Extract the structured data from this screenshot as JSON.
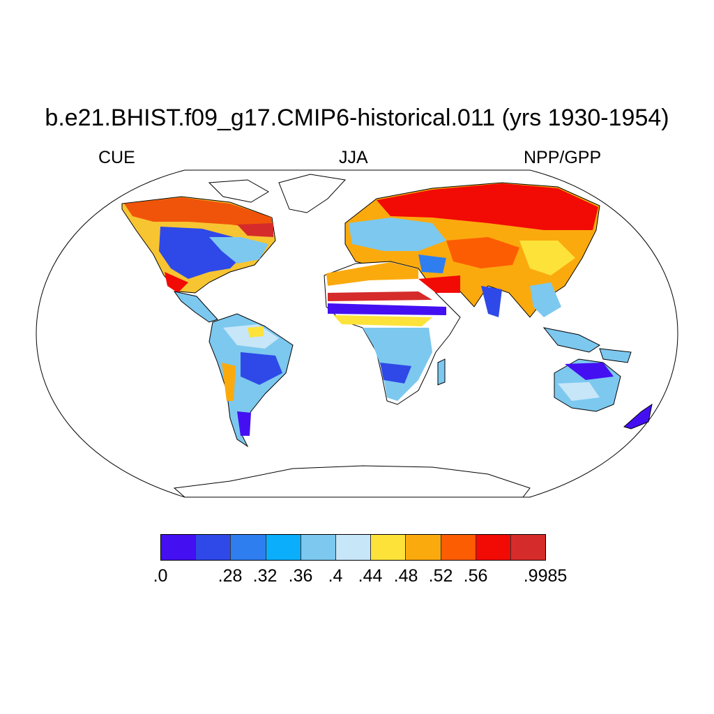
{
  "title": "b.e21.BHIST.f09_g17.CMIP6-historical.011 (yrs 1930-1954)",
  "left_label": "CUE",
  "center_label": "JJA",
  "right_label": "NPP/GPP",
  "colorbar": {
    "colors": [
      "#4410f2",
      "#2f49e8",
      "#2f7ef0",
      "#0aaefa",
      "#7cc8ef",
      "#c7e6f8",
      "#fde23a",
      "#fbaa0e",
      "#fd5d02",
      "#f20a05",
      "#d62b2b"
    ],
    "tick_labels": [
      ".0",
      ".28",
      ".32",
      ".36",
      ".4",
      ".44",
      ".48",
      ".52",
      ".56",
      ".9985"
    ]
  },
  "map": {
    "projection": "Robinson",
    "land_fill": "#ffffff",
    "coastline_color": "#000000"
  }
}
